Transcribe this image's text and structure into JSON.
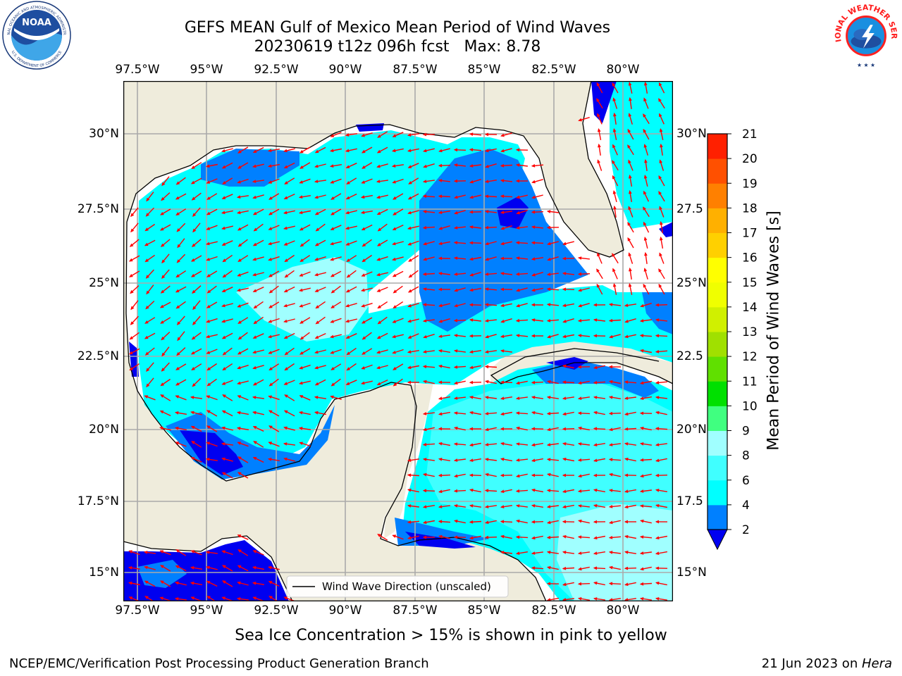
{
  "header": {
    "title_line1": "GEFS MEAN Gulf of Mexico Mean Period of Wind Waves",
    "title_line2": "20230619 t12z 096h fcst",
    "max_label": "Max: 8.78"
  },
  "logos": {
    "noaa": {
      "center_text": "NOAA",
      "ring_top": "NATIONAL OCEANIC AND ATMOSPHERIC ADMINISTRATION",
      "ring_bottom": "U.S. DEPARTMENT OF COMMERCE"
    },
    "nws": {
      "ring_text": "NATIONAL WEATHER SERVICE"
    }
  },
  "map": {
    "lon_ticks": [
      "97.5°W",
      "95°W",
      "92.5°W",
      "90°W",
      "87.5°W",
      "85°W",
      "82.5°W",
      "80°W"
    ],
    "lat_ticks": [
      "30°N",
      "27.5°N",
      "25°N",
      "22.5°N",
      "20°N",
      "17.5°N",
      "15°N"
    ],
    "right_lat_ticks": [
      "30°N",
      "27.5",
      "25°N",
      "22.5",
      "20°N",
      "17.5",
      "15°N"
    ],
    "legend_label": "Wind Wave Direction (unscaled)",
    "colors": {
      "land": "#efecdc",
      "ocean_white": "#ffffff",
      "arrow": "#ff0000"
    }
  },
  "colorbar": {
    "label": "Mean Period of Wind Waves [s]",
    "tick_labels": [
      "2",
      "4",
      "6",
      "8",
      "9",
      "10",
      "11",
      "12",
      "13",
      "14",
      "15",
      "16",
      "17",
      "18",
      "19",
      "20",
      "21"
    ],
    "colors": [
      "#0000f0",
      "#0080ff",
      "#00ffff",
      "#40ffff",
      "#a0ffff",
      "#40ff80",
      "#00e000",
      "#60e000",
      "#a0e000",
      "#d0f000",
      "#f0ff00",
      "#ffff00",
      "#ffd000",
      "#ffb000",
      "#ff8000",
      "#ff5000",
      "#ff2000",
      "#ff0000"
    ]
  },
  "caption": "Sea Ice Concentration > 15% is shown in pink to yellow",
  "footer": {
    "left": "NCEP/EMC/Verification Post Processing Product Generation Branch",
    "right_date": "21 Jun 2023 on ",
    "right_host": "Hera"
  }
}
